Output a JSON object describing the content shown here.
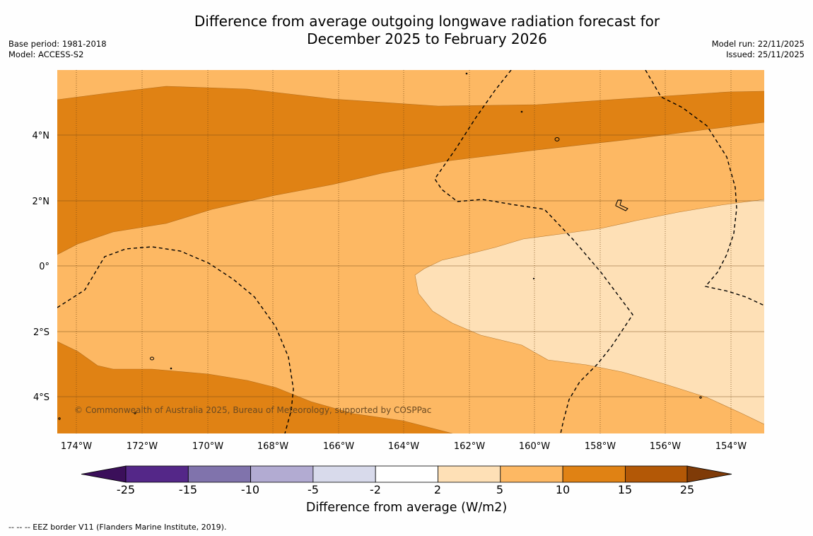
{
  "title": {
    "line1": "Difference from average outgoing longwave radiation forecast for",
    "line2": "December 2025 to February 2026"
  },
  "meta_left": {
    "base_period": "Base period: 1981-2018",
    "model": "Model: ACCESS-S2"
  },
  "meta_right": {
    "model_run": "Model run: 22/11/2025",
    "issued": "Issued: 25/11/2025"
  },
  "map": {
    "lon_labels": [
      "174°W",
      "172°W",
      "170°W",
      "168°W",
      "166°W",
      "164°W",
      "162°W",
      "160°W",
      "158°W",
      "156°W",
      "154°W"
    ],
    "lat_labels": [
      "4°N",
      "2°N",
      "0°",
      "2°S",
      "4°S"
    ],
    "copyright": "© Commonwealth of Australia 2025, Bureau of Meteorology, supported by COSPPac"
  },
  "colorbar": {
    "ticks": [
      "-25",
      "-15",
      "-10",
      "-5",
      "-2",
      "2",
      "5",
      "10",
      "15",
      "25"
    ],
    "colors": {
      "below_-25": "#3b0f5a",
      "-25_-15": "#542788",
      "-15_-10": "#8073ac",
      "-10_-5": "#b2abd2",
      "-5_-2": "#d8daeb",
      "-2_2": "#ffffff",
      "2_5": "#fee0b6",
      "5_10": "#fdb863",
      "10_15": "#e08214",
      "15_25": "#b35806",
      "above_25": "#7f3b08"
    },
    "label": "Difference from average (W/m2)"
  },
  "footer": "--  --  -- EEZ border V11 (Flanders Marine Institute, 2019)."
}
